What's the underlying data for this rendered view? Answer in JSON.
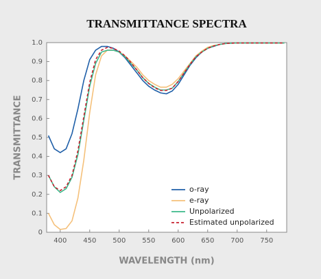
{
  "chart_data": {
    "type": "line",
    "title": "TRANSMITTANCE SPECTRA",
    "xlabel": "WAVELENGTH (nm)",
    "ylabel": "TRANSMITTANCE",
    "x": [
      380,
      390,
      400,
      410,
      420,
      430,
      440,
      450,
      460,
      470,
      480,
      490,
      500,
      510,
      520,
      530,
      540,
      550,
      560,
      570,
      580,
      590,
      600,
      610,
      620,
      630,
      640,
      650,
      660,
      670,
      680,
      690,
      700,
      710,
      720,
      730,
      740,
      750,
      760,
      770,
      780
    ],
    "series": [
      {
        "name": "o-ray",
        "color": "#1f5fa8",
        "dashed": false,
        "values": [
          0.51,
          0.44,
          0.42,
          0.44,
          0.52,
          0.65,
          0.8,
          0.91,
          0.96,
          0.98,
          0.98,
          0.97,
          0.95,
          0.92,
          0.88,
          0.84,
          0.8,
          0.77,
          0.75,
          0.735,
          0.73,
          0.745,
          0.78,
          0.83,
          0.88,
          0.92,
          0.95,
          0.97,
          0.98,
          0.99,
          0.995,
          0.997,
          0.998,
          0.998,
          0.998,
          0.998,
          0.998,
          0.998,
          0.998,
          0.998,
          0.998
        ]
      },
      {
        "name": "e-ray",
        "color": "#f5c07a",
        "dashed": false,
        "values": [
          0.1,
          0.04,
          0.015,
          0.02,
          0.06,
          0.18,
          0.38,
          0.63,
          0.83,
          0.93,
          0.96,
          0.96,
          0.95,
          0.93,
          0.9,
          0.87,
          0.83,
          0.8,
          0.78,
          0.765,
          0.765,
          0.78,
          0.81,
          0.85,
          0.89,
          0.93,
          0.955,
          0.975,
          0.985,
          0.99,
          0.995,
          0.997,
          0.998,
          0.998,
          0.998,
          0.998,
          0.998,
          0.998,
          0.998,
          0.998,
          0.998
        ]
      },
      {
        "name": "Unpolarized",
        "color": "#3bb88a",
        "dashed": false,
        "values": [
          0.3,
          0.24,
          0.21,
          0.23,
          0.29,
          0.41,
          0.59,
          0.77,
          0.89,
          0.95,
          0.96,
          0.96,
          0.95,
          0.925,
          0.89,
          0.855,
          0.815,
          0.785,
          0.765,
          0.75,
          0.75,
          0.76,
          0.795,
          0.84,
          0.885,
          0.925,
          0.95,
          0.97,
          0.982,
          0.99,
          0.995,
          0.997,
          0.998,
          0.998,
          0.998,
          0.998,
          0.998,
          0.998,
          0.998,
          0.998,
          0.998
        ]
      },
      {
        "name": "Estimated unpolarized",
        "color": "#c8202f",
        "dashed": true,
        "values": [
          0.3,
          0.24,
          0.22,
          0.24,
          0.3,
          0.43,
          0.61,
          0.79,
          0.91,
          0.96,
          0.975,
          0.97,
          0.955,
          0.93,
          0.895,
          0.855,
          0.815,
          0.785,
          0.762,
          0.748,
          0.748,
          0.76,
          0.795,
          0.84,
          0.885,
          0.925,
          0.95,
          0.97,
          0.982,
          0.99,
          0.995,
          0.997,
          0.998,
          0.998,
          0.998,
          0.998,
          0.998,
          0.998,
          0.998,
          0.998,
          0.998
        ]
      }
    ],
    "xlim": [
      377,
      784
    ],
    "ylim": [
      0,
      1
    ],
    "xticks": [
      400,
      450,
      500,
      550,
      600,
      650,
      700,
      750
    ],
    "yticks": [
      0,
      0.1,
      0.2,
      0.3,
      0.4,
      0.5,
      0.6,
      0.7,
      0.8,
      0.9,
      {
        "value": 1,
        "label": "1.0"
      }
    ],
    "legend": "lower right",
    "grid": false
  }
}
